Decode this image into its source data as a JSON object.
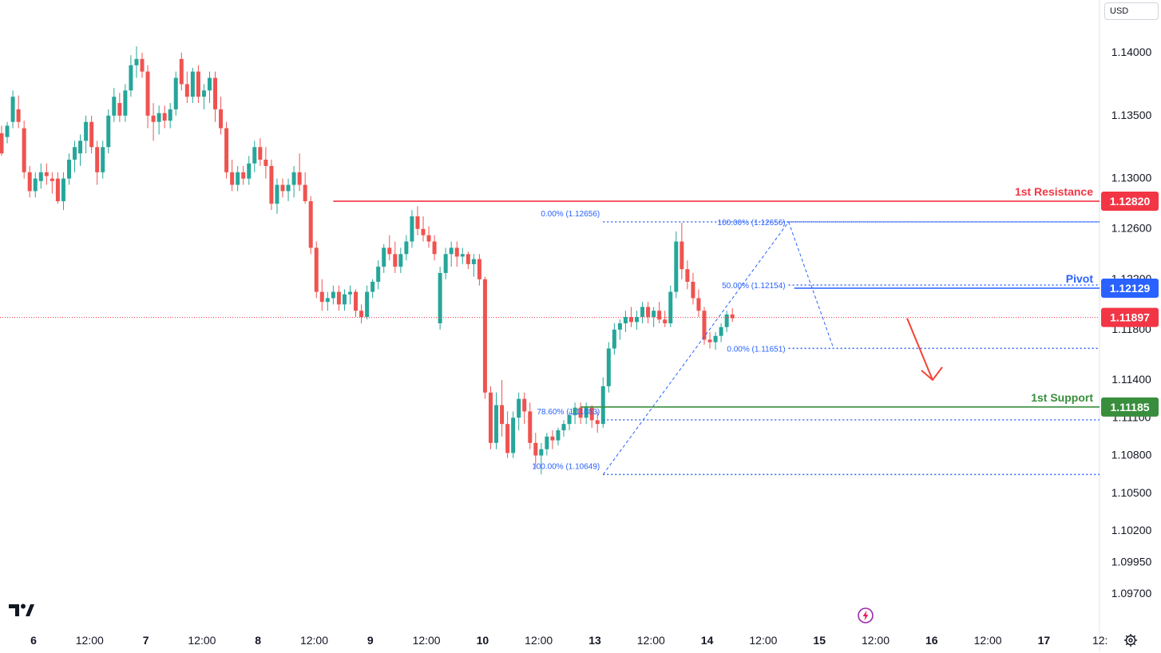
{
  "header": {
    "currency_label": "USD"
  },
  "icons": {
    "logo": "tradingview-logo-icon",
    "flash": "flash-icon",
    "settings": "gear-icon"
  },
  "colors": {
    "up": "#26a69a",
    "down": "#ef5350",
    "resistance": "#f23645",
    "pivot": "#2962ff",
    "support": "#388e3c",
    "fib": "#2962ff",
    "current": "#f23645",
    "arrow": "#f44336"
  },
  "chart_data": {
    "type": "candlestick",
    "title": "",
    "y_ticks": [
      "1.14000",
      "1.13500",
      "1.13000",
      "1.12600",
      "1.12200",
      "1.11800",
      "1.11400",
      "1.11100",
      "1.10800",
      "1.10500",
      "1.10200",
      "1.09950",
      "1.09700"
    ],
    "x_ticks": [
      "6",
      "12:00",
      "7",
      "12:00",
      "8",
      "12:00",
      "9",
      "12:00",
      "10",
      "12:00",
      "13",
      "12:00",
      "14",
      "12:00",
      "15",
      "12:00",
      "16",
      "12:00",
      "17",
      "12:"
    ],
    "levels": [
      {
        "name": "1st Resistance",
        "value": "1.12820",
        "color": "#f23645"
      },
      {
        "name": "Pivot",
        "value": "1.12129",
        "color": "#2962ff"
      },
      {
        "name": "1st Support",
        "value": "1.11185",
        "color": "#388e3c"
      }
    ],
    "current_price": "1.11897",
    "fib_left": [
      {
        "label": "0.00% (1.12656)",
        "value": 1.12656
      },
      {
        "label": "78.60% (1.11083)",
        "value": 1.11083
      },
      {
        "label": "100.00% (1.10649)",
        "value": 1.10649
      }
    ],
    "fib_right": [
      {
        "label": "100.00% (1.12656)",
        "value": 1.12656
      },
      {
        "label": "50.00% (1.12154)",
        "value": 1.12154
      },
      {
        "label": "0.00% (1.11651)",
        "value": 1.11651
      }
    ],
    "candles": [
      [
        1.1336,
        1.1342,
        1.1318,
        1.132
      ],
      [
        1.1333,
        1.1345,
        1.1328,
        1.1342
      ],
      [
        1.1345,
        1.137,
        1.134,
        1.1365
      ],
      [
        1.1355,
        1.1366,
        1.134,
        1.1345
      ],
      [
        1.134,
        1.1346,
        1.13,
        1.1305
      ],
      [
        1.1305,
        1.131,
        1.1285,
        1.129
      ],
      [
        1.129,
        1.1305,
        1.1285,
        1.13
      ],
      [
        1.1298,
        1.1312,
        1.1292,
        1.1305
      ],
      [
        1.1305,
        1.1312,
        1.1295,
        1.1302
      ],
      [
        1.13,
        1.1305,
        1.1288,
        1.1298
      ],
      [
        1.13,
        1.1305,
        1.128,
        1.1282
      ],
      [
        1.1282,
        1.1305,
        1.1275,
        1.13
      ],
      [
        1.13,
        1.132,
        1.1295,
        1.1315
      ],
      [
        1.1315,
        1.133,
        1.1305,
        1.1325
      ],
      [
        1.132,
        1.1335,
        1.131,
        1.133
      ],
      [
        1.133,
        1.135,
        1.132,
        1.1345
      ],
      [
        1.1345,
        1.135,
        1.132,
        1.1325
      ],
      [
        1.1325,
        1.133,
        1.1295,
        1.1305
      ],
      [
        1.1305,
        1.133,
        1.13,
        1.1325
      ],
      [
        1.1325,
        1.1355,
        1.132,
        1.135
      ],
      [
        1.135,
        1.1372,
        1.1345,
        1.1365
      ],
      [
        1.136,
        1.1368,
        1.1345,
        1.135
      ],
      [
        1.135,
        1.1375,
        1.1345,
        1.137
      ],
      [
        1.137,
        1.1398,
        1.1365,
        1.139
      ],
      [
        1.139,
        1.1405,
        1.138,
        1.1395
      ],
      [
        1.1395,
        1.14,
        1.138,
        1.1385
      ],
      [
        1.1385,
        1.139,
        1.134,
        1.135
      ],
      [
        1.135,
        1.136,
        1.133,
        1.1345
      ],
      [
        1.1345,
        1.1358,
        1.1335,
        1.1352
      ],
      [
        1.1352,
        1.1358,
        1.134,
        1.1346
      ],
      [
        1.1346,
        1.136,
        1.134,
        1.1355
      ],
      [
        1.1355,
        1.1385,
        1.135,
        1.138
      ],
      [
        1.1395,
        1.14,
        1.137,
        1.1375
      ],
      [
        1.1375,
        1.1385,
        1.136,
        1.1365
      ],
      [
        1.1365,
        1.1388,
        1.136,
        1.1385
      ],
      [
        1.1385,
        1.139,
        1.136,
        1.1365
      ],
      [
        1.1365,
        1.1375,
        1.1355,
        1.137
      ],
      [
        1.137,
        1.1385,
        1.136,
        1.138
      ],
      [
        1.138,
        1.1385,
        1.1345,
        1.1355
      ],
      [
        1.1355,
        1.1365,
        1.1335,
        1.134
      ],
      [
        1.134,
        1.1345,
        1.13,
        1.1305
      ],
      [
        1.1305,
        1.1315,
        1.129,
        1.1295
      ],
      [
        1.1295,
        1.131,
        1.129,
        1.1305
      ],
      [
        1.1305,
        1.131,
        1.1295,
        1.13
      ],
      [
        1.13,
        1.1318,
        1.1295,
        1.1312
      ],
      [
        1.1312,
        1.133,
        1.1305,
        1.1325
      ],
      [
        1.1325,
        1.1332,
        1.131,
        1.1315
      ],
      [
        1.1315,
        1.1325,
        1.13,
        1.131
      ],
      [
        1.131,
        1.1315,
        1.1275,
        1.128
      ],
      [
        1.128,
        1.13,
        1.1272,
        1.1295
      ],
      [
        1.1295,
        1.13,
        1.1285,
        1.129
      ],
      [
        1.129,
        1.13,
        1.1282,
        1.1295
      ],
      [
        1.1295,
        1.131,
        1.1285,
        1.1305
      ],
      [
        1.1305,
        1.132,
        1.129,
        1.1295
      ],
      [
        1.1295,
        1.1305,
        1.128,
        1.1282
      ],
      [
        1.1282,
        1.1286,
        1.124,
        1.1245
      ],
      [
        1.1245,
        1.125,
        1.1205,
        1.121
      ],
      [
        1.121,
        1.122,
        1.1195,
        1.1202
      ],
      [
        1.1202,
        1.121,
        1.1195,
        1.1205
      ],
      [
        1.1205,
        1.1215,
        1.12,
        1.121
      ],
      [
        1.121,
        1.1215,
        1.1195,
        1.12
      ],
      [
        1.12,
        1.1212,
        1.1195,
        1.1208
      ],
      [
        1.1208,
        1.1215,
        1.12,
        1.121
      ],
      [
        1.121,
        1.1212,
        1.119,
        1.1195
      ],
      [
        1.1195,
        1.12,
        1.1185,
        1.119
      ],
      [
        1.119,
        1.1215,
        1.1188,
        1.121
      ],
      [
        1.121,
        1.122,
        1.1205,
        1.1218
      ],
      [
        1.1218,
        1.1235,
        1.1212,
        1.123
      ],
      [
        1.123,
        1.1248,
        1.1225,
        1.1245
      ],
      [
        1.1245,
        1.1255,
        1.1235,
        1.124
      ],
      [
        1.124,
        1.125,
        1.1225,
        1.123
      ],
      [
        1.123,
        1.1245,
        1.1225,
        1.124
      ],
      [
        1.124,
        1.1255,
        1.1235,
        1.125
      ],
      [
        1.125,
        1.1275,
        1.1245,
        1.127
      ],
      [
        1.127,
        1.1278,
        1.1255,
        1.126
      ],
      [
        1.126,
        1.127,
        1.125,
        1.1255
      ],
      [
        1.1255,
        1.1262,
        1.1245,
        1.125
      ],
      [
        1.125,
        1.1255,
        1.1235,
        1.124
      ],
      [
        1.1185,
        1.123,
        1.118,
        1.1225
      ],
      [
        1.1225,
        1.1245,
        1.122,
        1.124
      ],
      [
        1.124,
        1.125,
        1.123,
        1.1245
      ],
      [
        1.1245,
        1.125,
        1.123,
        1.1238
      ],
      [
        1.1238,
        1.1245,
        1.1232,
        1.124
      ],
      [
        1.124,
        1.1242,
        1.1228,
        1.1232
      ],
      [
        1.1232,
        1.124,
        1.1222,
        1.1236
      ],
      [
        1.1236,
        1.124,
        1.1215,
        1.122
      ],
      [
        1.122,
        1.1222,
        1.1125,
        1.113
      ],
      [
        1.113,
        1.1135,
        1.1085,
        1.109
      ],
      [
        1.109,
        1.113,
        1.1085,
        1.112
      ],
      [
        1.112,
        1.114,
        1.1095,
        1.1105
      ],
      [
        1.1105,
        1.1115,
        1.1078,
        1.1082
      ],
      [
        1.1082,
        1.1115,
        1.1078,
        1.111
      ],
      [
        1.111,
        1.113,
        1.11,
        1.1125
      ],
      [
        1.1125,
        1.113,
        1.1105,
        1.1115
      ],
      [
        1.1115,
        1.1122,
        1.1085,
        1.109
      ],
      [
        1.109,
        1.1098,
        1.107,
        1.108
      ],
      [
        1.108,
        1.109,
        1.1065,
        1.1085
      ],
      [
        1.1085,
        1.1098,
        1.108,
        1.1095
      ],
      [
        1.1095,
        1.11,
        1.1085,
        1.1092
      ],
      [
        1.1092,
        1.1102,
        1.1088,
        1.11
      ],
      [
        1.11,
        1.1108,
        1.1095,
        1.1105
      ],
      [
        1.1105,
        1.1115,
        1.11,
        1.1112
      ],
      [
        1.1112,
        1.1122,
        1.1105,
        1.1118
      ],
      [
        1.1118,
        1.1122,
        1.1105,
        1.111
      ],
      [
        1.111,
        1.1122,
        1.1105,
        1.1118
      ],
      [
        1.1118,
        1.112,
        1.1102,
        1.1108
      ],
      [
        1.1108,
        1.1115,
        1.1098,
        1.1105
      ],
      [
        1.1105,
        1.1142,
        1.1102,
        1.1135
      ],
      [
        1.1135,
        1.117,
        1.113,
        1.1165
      ],
      [
        1.1165,
        1.1185,
        1.116,
        1.118
      ],
      [
        1.118,
        1.1188,
        1.1172,
        1.1185
      ],
      [
        1.1185,
        1.1195,
        1.1178,
        1.119
      ],
      [
        1.119,
        1.1198,
        1.1182,
        1.1186
      ],
      [
        1.1186,
        1.1195,
        1.118,
        1.119
      ],
      [
        1.119,
        1.1202,
        1.1185,
        1.1198
      ],
      [
        1.1198,
        1.1202,
        1.1185,
        1.119
      ],
      [
        1.119,
        1.1198,
        1.1182,
        1.1195
      ],
      [
        1.1195,
        1.1202,
        1.1185,
        1.1188
      ],
      [
        1.1188,
        1.1195,
        1.1182,
        1.1185
      ],
      [
        1.1185,
        1.1215,
        1.1182,
        1.121
      ],
      [
        1.121,
        1.1258,
        1.1205,
        1.125
      ],
      [
        1.125,
        1.1265,
        1.122,
        1.1228
      ],
      [
        1.1228,
        1.1235,
        1.1212,
        1.1218
      ],
      [
        1.1218,
        1.1225,
        1.12,
        1.1205
      ],
      [
        1.1205,
        1.1212,
        1.119,
        1.1195
      ],
      [
        1.1195,
        1.1198,
        1.1168,
        1.1172
      ],
      [
        1.1172,
        1.1178,
        1.1165,
        1.117
      ],
      [
        1.117,
        1.1178,
        1.1164,
        1.1175
      ],
      [
        1.1175,
        1.1185,
        1.117,
        1.1182
      ],
      [
        1.1182,
        1.1195,
        1.1178,
        1.1192
      ],
      [
        1.1192,
        1.1197,
        1.1186,
        1.1189
      ]
    ]
  }
}
